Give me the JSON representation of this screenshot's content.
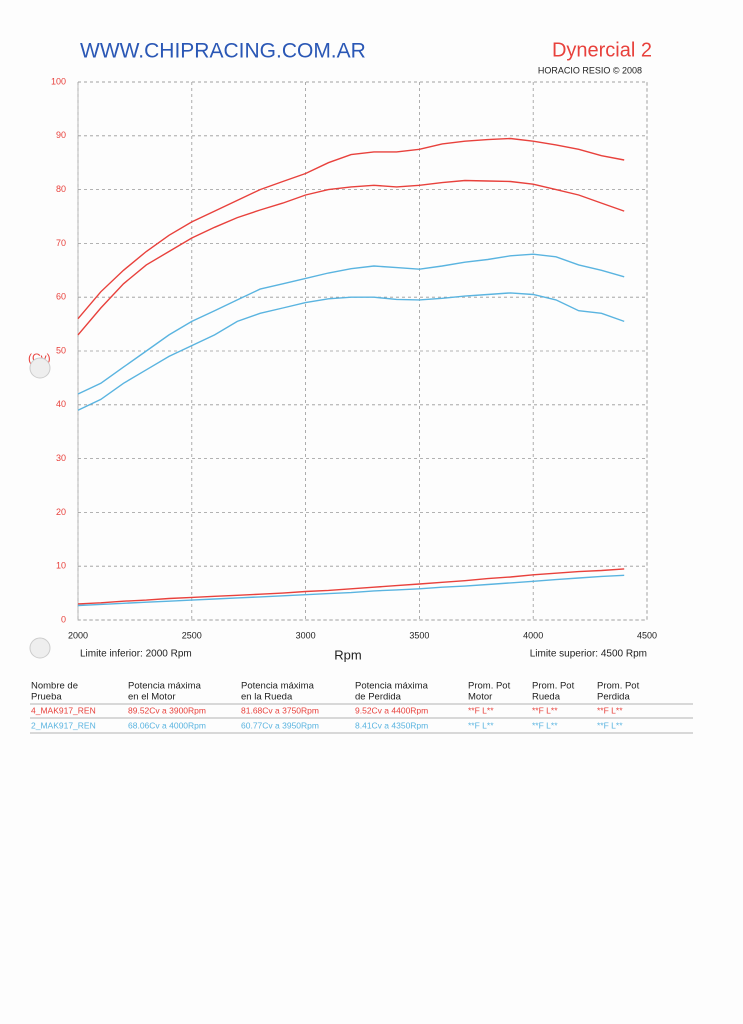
{
  "header": {
    "site": "WWW.CHIPRACING.COM.AR",
    "brand": "Dynercial 2",
    "credit": "HORACIO RESIO © 2008"
  },
  "chart_data": {
    "type": "line",
    "y_label": "(Cv)",
    "x_label": "Rpm",
    "lower_limit": "Limite inferior:  2000 Rpm",
    "upper_limit": "Limite superior:  4500 Rpm",
    "x": [
      2000,
      2100,
      2200,
      2300,
      2400,
      2500,
      2600,
      2700,
      2800,
      2900,
      3000,
      3100,
      3200,
      3300,
      3400,
      3500,
      3600,
      3700,
      3800,
      3900,
      4000,
      4100,
      4200,
      4300,
      4400
    ],
    "series": [
      {
        "color": "#e8413c",
        "values": [
          56,
          61,
          65,
          68.5,
          71.5,
          74,
          76,
          78,
          80,
          81.5,
          83,
          85,
          86.5,
          87,
          87,
          87.5,
          88.5,
          89,
          89.3,
          89.5,
          89,
          88.3,
          87.5,
          86.3,
          85.5
        ]
      },
      {
        "color": "#e8413c",
        "values": [
          53,
          58,
          62.5,
          66,
          68.5,
          71,
          73,
          74.8,
          76.2,
          77.5,
          79,
          80,
          80.5,
          80.8,
          80.5,
          80.8,
          81.3,
          81.7,
          81.6,
          81.5,
          81,
          80,
          79,
          77.5,
          76
        ]
      },
      {
        "color": "#e8413c",
        "values": [
          3,
          3.2,
          3.5,
          3.7,
          4,
          4.2,
          4.4,
          4.6,
          4.8,
          5,
          5.3,
          5.5,
          5.8,
          6.1,
          6.4,
          6.7,
          7,
          7.3,
          7.7,
          8,
          8.4,
          8.7,
          9,
          9.2,
          9.5
        ]
      },
      {
        "color": "#5ab4e0",
        "values": [
          42,
          44,
          47,
          50,
          53,
          55.5,
          57.5,
          59.5,
          61.5,
          62.5,
          63.5,
          64.5,
          65.3,
          65.8,
          65.5,
          65.2,
          65.8,
          66.5,
          67,
          67.7,
          68,
          67.5,
          66,
          65,
          63.8
        ]
      },
      {
        "color": "#5ab4e0",
        "values": [
          39,
          41,
          44,
          46.5,
          49,
          51,
          53,
          55.5,
          57,
          58,
          59,
          59.7,
          60,
          60,
          59.6,
          59.5,
          59.8,
          60.2,
          60.5,
          60.8,
          60.5,
          59.5,
          57.5,
          57,
          55.5
        ]
      },
      {
        "color": "#5ab4e0",
        "values": [
          2.7,
          2.9,
          3.1,
          3.3,
          3.5,
          3.7,
          3.9,
          4.1,
          4.3,
          4.5,
          4.7,
          4.9,
          5.1,
          5.4,
          5.6,
          5.8,
          6.1,
          6.3,
          6.6,
          6.9,
          7.2,
          7.5,
          7.8,
          8.1,
          8.3
        ]
      }
    ],
    "xlim": [
      2000,
      4500
    ],
    "xticks": [
      2000,
      2500,
      3000,
      3500,
      4000,
      4500
    ],
    "ylim": [
      0,
      100
    ],
    "yticks": [
      0,
      10,
      20,
      30,
      40,
      50,
      60,
      70,
      80,
      90,
      100
    ],
    "grid": true
  },
  "table": {
    "headers": [
      [
        "Nombre de",
        "Prueba"
      ],
      [
        "Potencia máxima",
        "en el Motor"
      ],
      [
        "Potencia máxima",
        "en la Rueda"
      ],
      [
        "Potencia máxima",
        "de Perdida"
      ],
      [
        "Prom. Pot",
        "Motor"
      ],
      [
        "Prom. Pot",
        "Rueda"
      ],
      [
        "Prom. Pot",
        "Perdida"
      ]
    ],
    "rows": [
      {
        "color": "#e8413c",
        "cells": [
          "4_MAK917_REN",
          "89.52Cv a  3900Rpm",
          "81.68Cv a  3750Rpm",
          "9.52Cv a  4400Rpm",
          "**F L**",
          "**F L**",
          "**F L**"
        ]
      },
      {
        "color": "#5ab4e0",
        "cells": [
          "2_MAK917_REN",
          "68.06Cv a  4000Rpm",
          "60.77Cv a  3950Rpm",
          "8.41Cv a  4350Rpm",
          "**F L**",
          "**F L**",
          "**F L**"
        ]
      }
    ]
  }
}
